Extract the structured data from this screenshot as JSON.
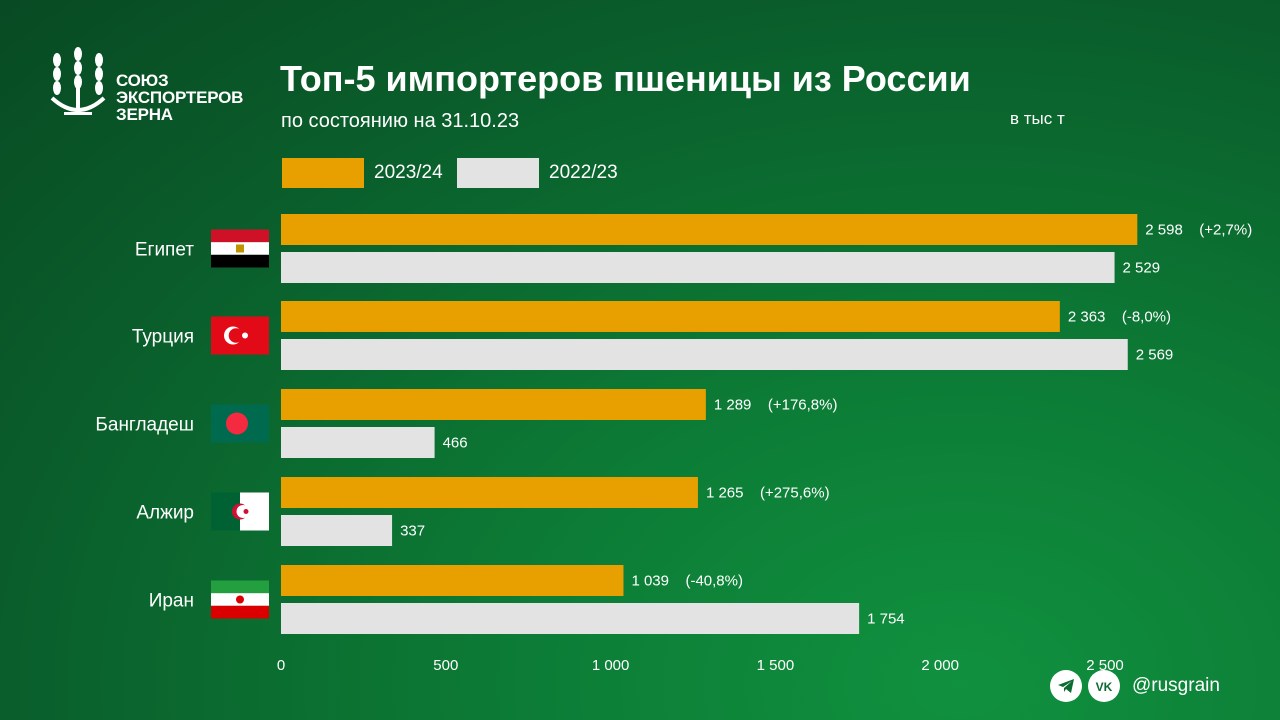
{
  "header": {
    "org_line1": "СОЮЗ",
    "org_line2": "ЭКСПОРТЕРОВ",
    "org_line3": "ЗЕРНА",
    "title": "Топ-5 импортеров пшеницы из России",
    "subtitle": "по состоянию  на 31.10.23",
    "unit": "в тыс т"
  },
  "colors": {
    "series_2023": "#e89f00",
    "series_2022": "#e3e3e3",
    "text": "#ffffff"
  },
  "footer": {
    "handle": "@rusgrain",
    "icons": [
      "telegram-icon",
      "vk-icon"
    ]
  },
  "chart_data": {
    "type": "bar",
    "orientation": "horizontal",
    "categories": [
      "Египет",
      "Турция",
      "Бангладеш",
      "Алжир",
      "Иран"
    ],
    "category_icons": [
      "egypt-flag-icon",
      "turkey-flag-icon",
      "bangladesh-flag-icon",
      "algeria-flag-icon",
      "iran-flag-icon"
    ],
    "series": [
      {
        "name": "2023/24",
        "values": [
          2598,
          2363,
          1289,
          1265,
          1039
        ],
        "value_labels": [
          "2 598",
          "2 363",
          "1 289",
          "1 265",
          "1 039"
        ],
        "change_labels": [
          "(+2,7%)",
          "(-8,0%)",
          "(+176,8%)",
          "(+275,6%)",
          "(-40,8%)"
        ]
      },
      {
        "name": "2022/23",
        "values": [
          2529,
          2569,
          466,
          337,
          1754
        ],
        "value_labels": [
          "2 529",
          "2 569",
          "466",
          "337",
          "1 754"
        ]
      }
    ],
    "x_ticks": [
      0,
      500,
      1000,
      1500,
      2000,
      2500
    ],
    "x_tick_labels": [
      "0",
      "500",
      "1 000",
      "1 500",
      "2 000",
      "2 500"
    ],
    "xlim": [
      0,
      2700
    ],
    "grid": false,
    "legend": "top-left"
  }
}
